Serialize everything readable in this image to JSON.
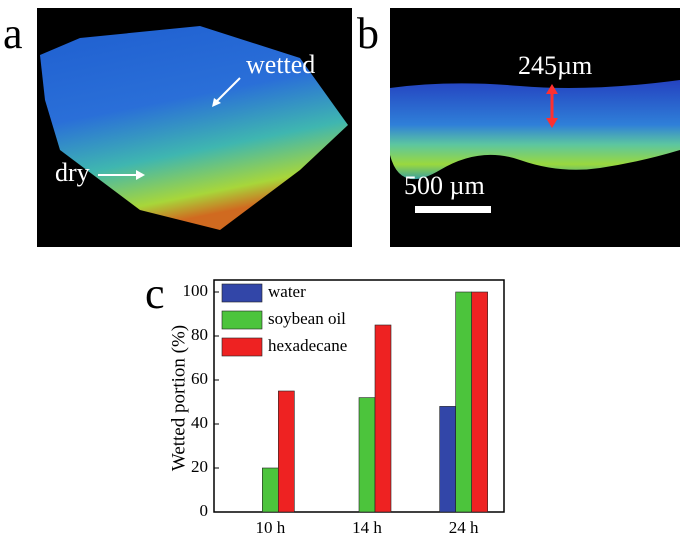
{
  "panels": [
    {
      "label": "a",
      "annotations": [
        "wetted",
        "dry"
      ]
    },
    {
      "label": "b",
      "annotations": [
        "245µm",
        "500 µm"
      ]
    },
    {
      "label": "c"
    }
  ],
  "chart_data": {
    "type": "bar",
    "ylabel": "Wetted portion (%)",
    "categories": [
      "10 h",
      "14 h",
      "24 h"
    ],
    "series": [
      {
        "name": "water",
        "color": "#3246a8",
        "values": [
          0,
          0,
          48
        ]
      },
      {
        "name": "soybean oil",
        "color": "#4cc43c",
        "values": [
          20,
          52,
          100
        ]
      },
      {
        "name": "hexadecane",
        "color": "#ee2222",
        "values": [
          55,
          85,
          100
        ]
      }
    ],
    "ylim": [
      0,
      100
    ],
    "yticks": [
      0,
      20,
      40,
      60,
      80,
      100
    ],
    "legend": "upper-left"
  }
}
